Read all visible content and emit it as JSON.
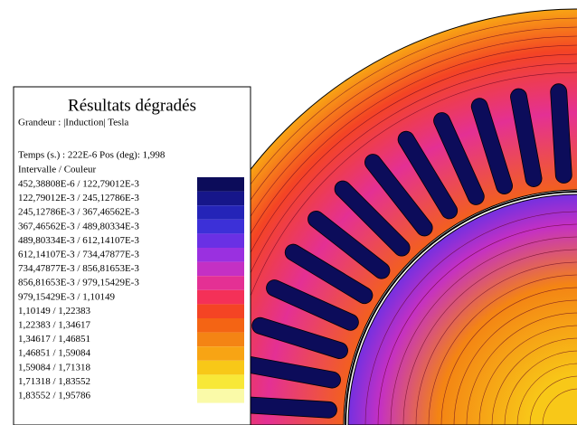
{
  "legend": {
    "title": "Résultats dégradés",
    "quantity": "Grandeur : |Induction| Tesla",
    "time": "Temps (s.) : 222E-6 Pos (deg): 1,998",
    "header": "Intervalle  /  Couleur",
    "rows": [
      {
        "label": "452,38808E-6  /  122,79012E-3",
        "color": "#0c0c5a"
      },
      {
        "label": "122,79012E-3  /  245,12786E-3",
        "color": "#16168a"
      },
      {
        "label": "245,12786E-3  /  367,46562E-3",
        "color": "#2424b8"
      },
      {
        "label": "367,46562E-3  /  489,80334E-3",
        "color": "#3c30d8"
      },
      {
        "label": "489,80334E-3  /  612,14107E-3",
        "color": "#6a30e4"
      },
      {
        "label": "612,14107E-3  /  734,47877E-3",
        "color": "#9a30e0"
      },
      {
        "label": "734,47877E-3  /  856,81653E-3",
        "color": "#c430c4"
      },
      {
        "label": "856,81653E-3  /  979,15429E-3",
        "color": "#e43094"
      },
      {
        "label": "979,15429E-3  /  1,10149",
        "color": "#f43058"
      },
      {
        "label": "1,10149  /  1,22383",
        "color": "#f44424"
      },
      {
        "label": "1,22383  /  1,34617",
        "color": "#f46414"
      },
      {
        "label": "1,34617  /  1,46851",
        "color": "#f48414"
      },
      {
        "label": "1,46851  /  1,59084",
        "color": "#f8a414"
      },
      {
        "label": "1,59084  /  1,71318",
        "color": "#f8c818"
      },
      {
        "label": "1,71318  /  1,83552",
        "color": "#f8e838"
      },
      {
        "label": "1,83552  /  1,95786",
        "color": "#fafaa8"
      }
    ]
  }
}
